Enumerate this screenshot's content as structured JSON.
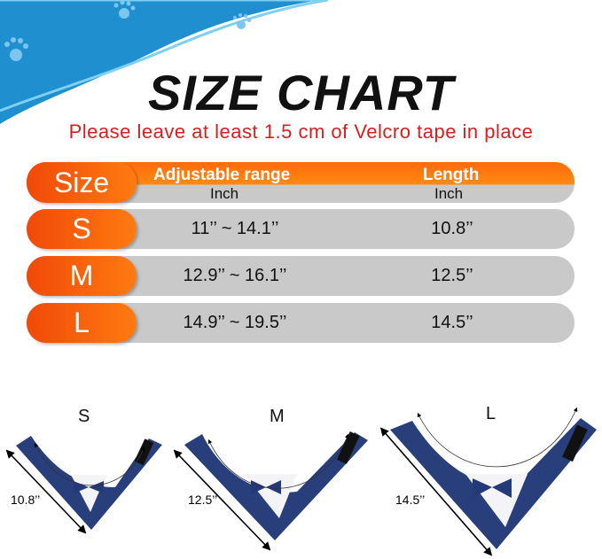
{
  "title": "SIZE CHART",
  "subtitle": "Please leave at least 1.5 cm of Velcro tape in place",
  "table": {
    "header": {
      "size": "Size",
      "range": "Adjustable range",
      "length": "Length",
      "range_unit": "Inch",
      "length_unit": "Inch"
    },
    "rows": [
      {
        "size": "S",
        "range": "11’’ ~ 14.1’’",
        "length": "10.8’’"
      },
      {
        "size": "M",
        "range": "12.9’’ ~ 16.1’’",
        "length": "12.5’’"
      },
      {
        "size": "L",
        "range": "14.9’’ ~ 19.5’’",
        "length": "14.5’’"
      }
    ]
  },
  "diagrams": [
    {
      "size": "S",
      "length": "10.8’’"
    },
    {
      "size": "M",
      "length": "12.5’’"
    },
    {
      "size": "L",
      "length": "14.5’’"
    }
  ],
  "colors": {
    "accent": "#ff6a0a",
    "subtitle": "#d42020",
    "collar": "#283f7c",
    "wave": "#1f8fd0"
  }
}
